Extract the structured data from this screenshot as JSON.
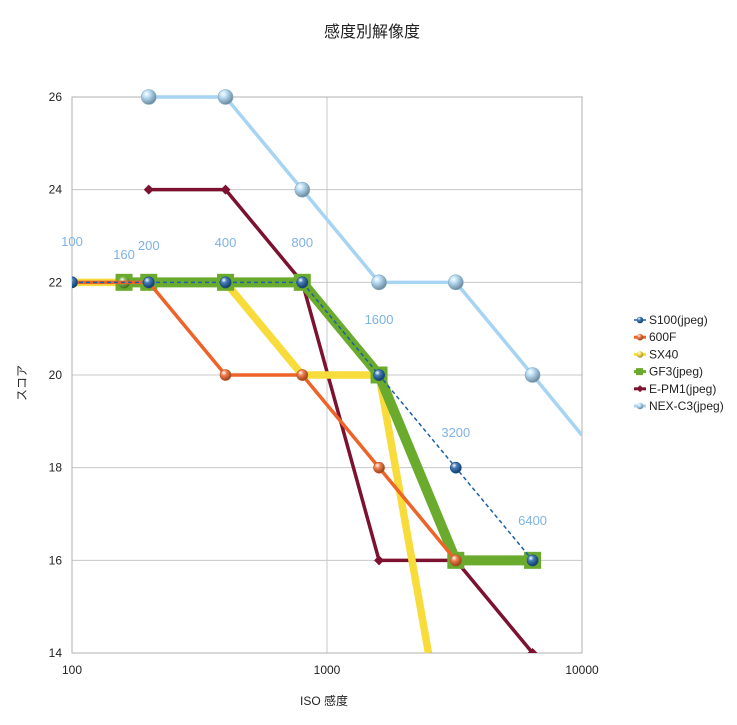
{
  "chart_data": {
    "type": "line",
    "title": "感度別解像度",
    "xlabel": "ISO 感度",
    "ylabel": "スコア",
    "xscale": "log",
    "xlim": [
      100,
      10000
    ],
    "ylim": [
      14,
      26
    ],
    "xticks": [
      "100",
      "1000",
      "10000"
    ],
    "yticks": [
      "14",
      "16",
      "18",
      "20",
      "22",
      "24",
      "26"
    ],
    "grid": true,
    "legend_position": "right",
    "series": [
      {
        "name": "S100(jpeg)",
        "color": "#1a5fa8",
        "style": "dashed-line-ball",
        "points": [
          [
            100,
            22
          ],
          [
            200,
            22
          ],
          [
            400,
            22
          ],
          [
            800,
            22
          ],
          [
            1600,
            20
          ],
          [
            3200,
            18
          ],
          [
            6400,
            16
          ]
        ]
      },
      {
        "name": "600F",
        "color": "#ee6428",
        "style": "line-ball",
        "points": [
          [
            100,
            22
          ],
          [
            200,
            22
          ],
          [
            400,
            20
          ],
          [
            800,
            20
          ],
          [
            1600,
            18
          ],
          [
            3200,
            16
          ]
        ]
      },
      {
        "name": "SX40",
        "color": "#f8dc3c",
        "style": "thick-line-ball",
        "points": [
          [
            100,
            22
          ],
          [
            200,
            22
          ],
          [
            400,
            22
          ],
          [
            800,
            20
          ],
          [
            1600,
            20
          ],
          [
            2500,
            14
          ]
        ]
      },
      {
        "name": "GF3(jpeg)",
        "color": "#6aab2e",
        "style": "thick-line-square",
        "points": [
          [
            160,
            22
          ],
          [
            200,
            22
          ],
          [
            400,
            22
          ],
          [
            800,
            22
          ],
          [
            1600,
            20
          ],
          [
            3200,
            16
          ],
          [
            6400,
            16
          ]
        ]
      },
      {
        "name": "E-PM1(jpeg)",
        "color": "#7d1230",
        "style": "line-diamond",
        "points": [
          [
            200,
            24
          ],
          [
            400,
            24
          ],
          [
            800,
            22
          ],
          [
            1600,
            16
          ],
          [
            3200,
            16
          ],
          [
            6400,
            14
          ]
        ]
      },
      {
        "name": "NEX-C3(jpeg)",
        "color": "#a6d4f2",
        "style": "line-ball",
        "points": [
          [
            200,
            26
          ],
          [
            400,
            26
          ],
          [
            800,
            24
          ],
          [
            1600,
            22
          ],
          [
            3200,
            22
          ],
          [
            6400,
            20
          ],
          [
            10000,
            18.7
          ]
        ]
      }
    ],
    "annotations": [
      {
        "text": "100",
        "x": 100
      },
      {
        "text": "160",
        "x": 160
      },
      {
        "text": "200",
        "x": 200
      },
      {
        "text": "400",
        "x": 400
      },
      {
        "text": "800",
        "x": 800
      },
      {
        "text": "1600",
        "x": 1600
      },
      {
        "text": "3200",
        "x": 3200
      },
      {
        "text": "6400",
        "x": 6400
      }
    ]
  }
}
